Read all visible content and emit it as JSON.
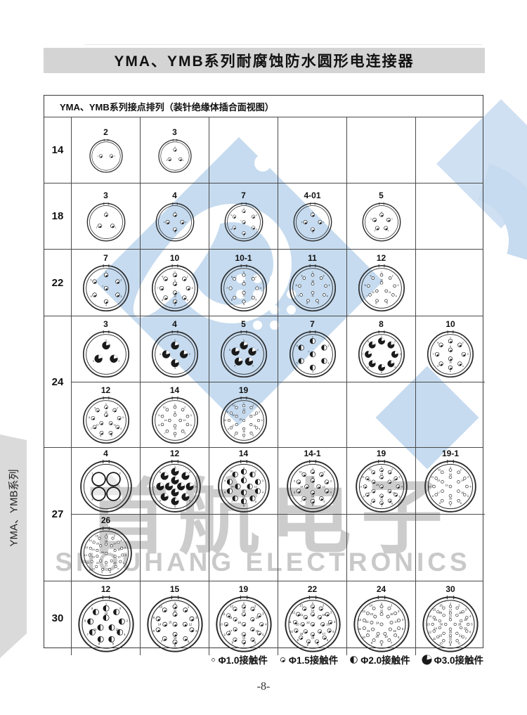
{
  "page": {
    "title": "YMA、YMB系列耐腐蚀防水圆形电连接器",
    "page_number": "-8-"
  },
  "sidebar": {
    "label": "YMA、YMB系列"
  },
  "watermark": {
    "cn": "首航电子",
    "en": "SHOUHANG ELECTRONICS"
  },
  "table": {
    "header": "YMA、YMB系列接点排列（装针绝缘体插合面视图）",
    "rows": [
      {
        "shell": "14",
        "sub_rows": [
          [
            {
              "label": "2",
              "pins": 2,
              "rings": [
                2
              ],
              "type": "1.5"
            },
            {
              "label": "3",
              "pins": 3,
              "rings": [
                3
              ],
              "type": "1.5"
            },
            null,
            null,
            null,
            null
          ]
        ]
      },
      {
        "shell": "18",
        "sub_rows": [
          [
            {
              "label": "3",
              "pins": 3,
              "rings": [
                3
              ],
              "type": "1.5"
            },
            {
              "label": "4",
              "pins": 4,
              "rings": [
                4
              ],
              "type": "1.5"
            },
            {
              "label": "7",
              "pins": 7,
              "rings": [
                6,
                1
              ],
              "type": "1.5"
            },
            {
              "label": "4-01",
              "pins": 4,
              "rings": [
                4
              ],
              "type": "1.5"
            },
            {
              "label": "5",
              "pins": 5,
              "rings": [
                5
              ],
              "type": "1.5"
            },
            null
          ]
        ]
      },
      {
        "shell": "22",
        "sub_rows": [
          [
            {
              "label": "7",
              "pins": 7,
              "rings": [
                6,
                1
              ],
              "type": "1.5"
            },
            {
              "label": "10",
              "pins": 10,
              "rings": [
                8,
                2
              ],
              "type": "1.5"
            },
            {
              "label": "10-1",
              "pins": 10,
              "rings": [
                8,
                2
              ],
              "type": "1.0"
            },
            {
              "label": "11",
              "pins": 11,
              "rings": [
                9,
                2
              ],
              "type": "1.0"
            },
            {
              "label": "12",
              "pins": 12,
              "rings": [
                9,
                3
              ],
              "type": "1.0"
            },
            null
          ]
        ]
      },
      {
        "shell": "24",
        "sub_rows": [
          [
            {
              "label": "3",
              "pins": 3,
              "rings": [
                3
              ],
              "type": "3.0"
            },
            {
              "label": "4",
              "pins": 4,
              "rings": [
                4
              ],
              "type": "3.0"
            },
            {
              "label": "5",
              "pins": 5,
              "rings": [
                5
              ],
              "type": "3.0"
            },
            {
              "label": "7",
              "pins": 7,
              "rings": [
                6,
                1
              ],
              "type": "2.0"
            },
            {
              "label": "8",
              "pins": 8,
              "rings": [
                8
              ],
              "type": "3.0"
            },
            {
              "label": "10",
              "pins": 10,
              "rings": [
                8,
                2
              ],
              "type": "1.5"
            }
          ],
          [
            {
              "label": "12",
              "pins": 12,
              "rings": [
                9,
                3
              ],
              "type": "1.5"
            },
            {
              "label": "14",
              "pins": 14,
              "rings": [
                10,
                4
              ],
              "type": "1.0"
            },
            {
              "label": "19",
              "pins": 19,
              "rings": [
                12,
                6,
                1
              ],
              "type": "1.0"
            },
            null,
            null,
            null
          ]
        ]
      },
      {
        "shell": "27",
        "sub_rows": [
          [
            {
              "label": "4",
              "pins": 4,
              "rings": [
                4
              ],
              "type": "big"
            },
            {
              "label": "12",
              "pins": 12,
              "rings": [
                8,
                4
              ],
              "type": "3.0"
            },
            {
              "label": "14",
              "pins": 14,
              "rings": [
                10,
                4
              ],
              "type": "2.0"
            },
            {
              "label": "14-1",
              "pins": 14,
              "rings": [
                10,
                4
              ],
              "type": "1.5"
            },
            {
              "label": "19",
              "pins": 19,
              "rings": [
                12,
                6,
                1
              ],
              "type": "1.5"
            },
            {
              "label": "19-1",
              "pins": 19,
              "rings": [
                12,
                6,
                1
              ],
              "type": "1.0"
            }
          ],
          [
            {
              "label": "26",
              "pins": 26,
              "rings": [
                15,
                10,
                1
              ],
              "type": "1.0"
            },
            null,
            null,
            null,
            null,
            null
          ]
        ]
      },
      {
        "shell": "30",
        "sub_rows": [
          [
            {
              "label": "12",
              "pins": 12,
              "rings": [
                9,
                3
              ],
              "type": "2.0"
            },
            {
              "label": "15",
              "pins": 15,
              "rings": [
                10,
                4,
                1
              ],
              "type": "1.5"
            },
            {
              "label": "19",
              "pins": 19,
              "rings": [
                12,
                6,
                1
              ],
              "type": "1.5"
            },
            {
              "label": "22",
              "pins": 22,
              "rings": [
                13,
                8,
                1
              ],
              "type": "1.5"
            },
            {
              "label": "24",
              "pins": 24,
              "rings": [
                14,
                9,
                1
              ],
              "type": "1.0"
            },
            {
              "label": "30",
              "pins": 30,
              "rings": [
                16,
                10,
                4
              ],
              "type": "1.0"
            }
          ]
        ]
      }
    ]
  },
  "legend": {
    "items": [
      {
        "symbol": "1.0",
        "label": "Φ1.0接触件"
      },
      {
        "symbol": "1.5",
        "label": "Φ1.5接触件"
      },
      {
        "symbol": "2.0",
        "label": "Φ2.0接触件"
      },
      {
        "symbol": "3.0",
        "label": "Φ3.0接触件"
      }
    ]
  },
  "colors": {
    "watermark_blue": "#c6dbef",
    "watermark_gray": "#cccccc",
    "titlebar_gray": "#d4d4d4",
    "line": "#4a4a4a"
  }
}
